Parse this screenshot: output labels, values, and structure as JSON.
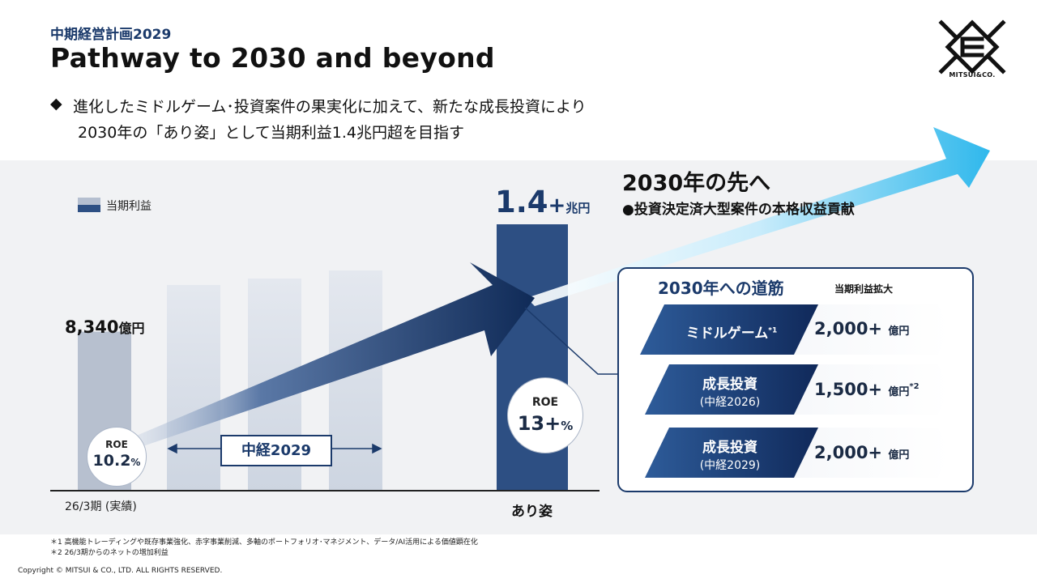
{
  "header": {
    "plan_label": "中期経営計画2029",
    "title": "Pathway to 2030 and beyond",
    "logo_text": "MITSUI&CO."
  },
  "lead": {
    "bullet": "◆",
    "line1": "進化したミドルゲーム･投資案件の果実化に加えて、新たな成長投資により",
    "line2": "2030年の「あり姿」として当期利益1.4兆円超を目指す"
  },
  "legend": {
    "label": "当期利益"
  },
  "chart": {
    "left_value": "8,340",
    "left_unit": "億円",
    "left_roe_label": "ROE",
    "left_roe_value": "10.2",
    "left_roe_unit": "%",
    "period_label": "中経2029",
    "right_value": "1.4",
    "right_plus": "+",
    "right_unit": "兆円",
    "right_roe_label": "ROE",
    "right_roe_value": "13+",
    "right_roe_unit": "%",
    "x_left": "26/3期 (実績)",
    "x_right": "あり姿"
  },
  "chart_data": {
    "type": "bar",
    "categories": [
      "26/3期 (実績)",
      "",
      "",
      "",
      "",
      "あり姿"
    ],
    "values": [
      8340,
      null,
      null,
      null,
      null,
      14000
    ],
    "ylabel": "",
    "series": [
      {
        "name": "当期利益",
        "values": [
          8340,
          null,
          null,
          null,
          null,
          14000
        ]
      }
    ]
  },
  "beyond": {
    "title": "2030年の先へ",
    "sub": "●投資決定済大型案件の本格収益貢献"
  },
  "panel": {
    "title": "2030年への道筋",
    "subtitle": "当期利益拡大",
    "rows": [
      {
        "label": "ミドルゲーム",
        "label_sup": "*1",
        "sublabel": "",
        "value": "2,000+",
        "unit": "億円",
        "value_sup": ""
      },
      {
        "label": "成長投資",
        "label_sup": "",
        "sublabel": "(中経2026)",
        "value": "1,500+",
        "unit": "億円",
        "value_sup": "*2"
      },
      {
        "label": "成長投資",
        "label_sup": "",
        "sublabel": "(中経2029)",
        "value": "2,000+",
        "unit": "億円",
        "value_sup": ""
      }
    ]
  },
  "footnotes": {
    "note1": "＊1 高機能トレーディングや既存事業強化、赤字事業削減、多軸のポートフォリオ･マネジメント、データ/AI活用による価値顕在化",
    "note2": "＊2 26/3期からのネットの増加利益"
  },
  "copyright": "Copyright © MITSUI & CO., LTD. ALL RIGHTS RESERVED.",
  "colors": {
    "navy": "#1b3a6b",
    "bar_dark": "#2d4f83",
    "cyan": "#2fb8ec",
    "band": "#f1f2f4"
  }
}
